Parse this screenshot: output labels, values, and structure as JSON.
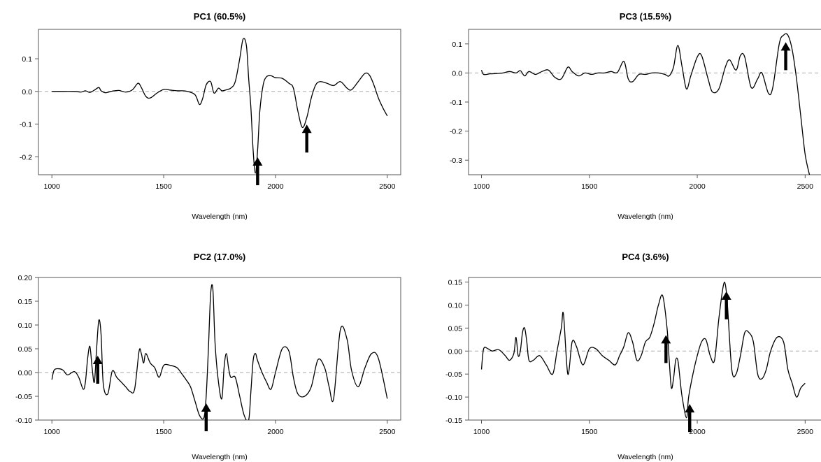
{
  "chart_data": [
    {
      "type": "line",
      "title": "PC1 (60.5%)",
      "xlabel": "Wavelength (nm)",
      "ylabel": "",
      "xlim": [
        940,
        2560
      ],
      "ylim": [
        -0.255,
        0.19
      ],
      "xticks": [
        1000,
        1500,
        2000,
        2500
      ],
      "yticks": [
        -0.2,
        -0.1,
        0.0,
        0.1
      ],
      "ytick_labels": [
        "-0.2",
        "-0.1",
        "0.0",
        "0.1"
      ],
      "zero_line": true,
      "series": [
        {
          "x": [
            1000,
            1050,
            1100,
            1130,
            1150,
            1170,
            1190,
            1210,
            1220,
            1240,
            1270,
            1300,
            1330,
            1360,
            1385,
            1400,
            1420,
            1440,
            1470,
            1500,
            1530,
            1560,
            1600,
            1640,
            1660,
            1675,
            1690,
            1710,
            1725,
            1745,
            1760,
            1780,
            1800,
            1820,
            1840,
            1855,
            1870,
            1880,
            1890,
            1900,
            1910,
            1920,
            1930,
            1945,
            1960,
            1980,
            2000,
            2030,
            2060,
            2080,
            2100,
            2120,
            2140,
            2160,
            2180,
            2200,
            2230,
            2260,
            2290,
            2320,
            2340,
            2370,
            2400,
            2420,
            2440,
            2460,
            2480,
            2500
          ],
          "y": [
            0,
            0,
            0,
            -0.002,
            0.002,
            -0.003,
            0.004,
            0.012,
            0.002,
            -0.004,
            0.001,
            0.003,
            -0.002,
            0.005,
            0.025,
            0.012,
            -0.015,
            -0.02,
            -0.005,
            0.006,
            0.004,
            0.002,
            0.001,
            -0.01,
            -0.04,
            -0.02,
            0.02,
            0.03,
            -0.005,
            0.01,
            0.002,
            0.005,
            0.01,
            0.03,
            0.1,
            0.16,
            0.14,
            0.04,
            -0.05,
            -0.18,
            -0.25,
            -0.18,
            -0.06,
            0.02,
            0.045,
            0.048,
            0.042,
            0.04,
            0.025,
            0.01,
            -0.06,
            -0.11,
            -0.08,
            -0.02,
            0.02,
            0.03,
            0.025,
            0.018,
            0.03,
            0.01,
            0.005,
            0.03,
            0.055,
            0.05,
            0.02,
            -0.02,
            -0.05,
            -0.075
          ]
        }
      ],
      "arrows": [
        1920,
        2140
      ]
    },
    {
      "type": "line",
      "title": "PC2 (17.0%)",
      "xlabel": "Wavelength (nm)",
      "ylabel": "",
      "xlim": [
        940,
        2560
      ],
      "ylim": [
        -0.1,
        0.2
      ],
      "xticks": [
        1000,
        1500,
        2000,
        2500
      ],
      "yticks": [
        -0.1,
        -0.05,
        0.0,
        0.05,
        0.1,
        0.15,
        0.2
      ],
      "ytick_labels": [
        "-0.10",
        "-0.05",
        "0.00",
        "0.05",
        "0.10",
        "0.15",
        "0.20"
      ],
      "zero_line": true,
      "series": [
        {
          "x": [
            1000,
            1010,
            1030,
            1050,
            1070,
            1100,
            1120,
            1140,
            1150,
            1160,
            1170,
            1180,
            1190,
            1200,
            1210,
            1220,
            1230,
            1250,
            1270,
            1290,
            1310,
            1330,
            1350,
            1370,
            1390,
            1400,
            1410,
            1420,
            1440,
            1460,
            1480,
            1500,
            1530,
            1560,
            1580,
            1600,
            1620,
            1640,
            1660,
            1680,
            1690,
            1700,
            1710,
            1720,
            1730,
            1745,
            1760,
            1770,
            1780,
            1790,
            1800,
            1820,
            1840,
            1860,
            1880,
            1890,
            1900,
            1910,
            1920,
            1940,
            1960,
            1980,
            2000,
            2030,
            2060,
            2080,
            2100,
            2130,
            2160,
            2190,
            2220,
            2240,
            2260,
            2290,
            2320,
            2340,
            2370,
            2400,
            2430,
            2460,
            2500
          ],
          "y": [
            -0.015,
            0.005,
            0.008,
            0.005,
            -0.005,
            0.002,
            -0.01,
            -0.035,
            -0.02,
            0.03,
            0.055,
            0.01,
            -0.02,
            0.05,
            0.11,
            0.08,
            -0.025,
            -0.045,
            0.003,
            -0.01,
            -0.02,
            -0.03,
            -0.04,
            -0.035,
            0.045,
            0.04,
            0.02,
            0.04,
            0.02,
            0.01,
            -0.01,
            0.015,
            0.015,
            0.01,
            -0.002,
            -0.015,
            -0.03,
            -0.06,
            -0.09,
            -0.095,
            -0.05,
            0.05,
            0.165,
            0.175,
            0.06,
            -0.02,
            -0.055,
            0.01,
            0.04,
            0.01,
            -0.01,
            -0.01,
            -0.05,
            -0.09,
            -0.1,
            -0.04,
            0.025,
            0.04,
            0.025,
            0.0,
            -0.02,
            -0.035,
            0.0,
            0.05,
            0.045,
            -0.01,
            -0.045,
            -0.05,
            -0.03,
            0.027,
            0.01,
            -0.03,
            -0.055,
            0.09,
            0.07,
            0.005,
            -0.03,
            0.01,
            0.04,
            0.03,
            -0.055
          ]
        }
      ],
      "arrows": [
        1205,
        1690
      ]
    },
    {
      "type": "line",
      "title": "PC3 (15.5%)",
      "xlabel": "Wavelength (nm)",
      "ylabel": "",
      "xlim": [
        940,
        2580
      ],
      "ylim": [
        -0.35,
        0.15
      ],
      "xticks": [
        1000,
        1500,
        2000,
        2500
      ],
      "yticks": [
        -0.3,
        -0.2,
        -0.1,
        0.0,
        0.1
      ],
      "ytick_labels": [
        "-0.3",
        "-0.2",
        "-0.1",
        "0.0",
        "0.1"
      ],
      "zero_line": true,
      "series": [
        {
          "x": [
            1000,
            1010,
            1040,
            1070,
            1100,
            1130,
            1160,
            1180,
            1200,
            1220,
            1250,
            1280,
            1310,
            1340,
            1370,
            1400,
            1420,
            1450,
            1480,
            1510,
            1540,
            1570,
            1600,
            1630,
            1660,
            1680,
            1700,
            1730,
            1760,
            1790,
            1820,
            1850,
            1870,
            1890,
            1910,
            1930,
            1950,
            1970,
            2000,
            2020,
            2050,
            2070,
            2100,
            2130,
            2150,
            2180,
            2200,
            2220,
            2250,
            2280,
            2300,
            2330,
            2350,
            2380,
            2400,
            2420,
            2440,
            2460,
            2480,
            2500,
            2520
          ],
          "y": [
            0.01,
            -0.005,
            -0.003,
            -0.002,
            0.0,
            0.005,
            0.0,
            0.008,
            -0.01,
            0.005,
            -0.005,
            0.005,
            0.01,
            -0.015,
            -0.02,
            0.02,
            0.005,
            -0.01,
            0.0,
            -0.005,
            0.0,
            0.0,
            0.005,
            0.002,
            0.04,
            -0.02,
            -0.03,
            -0.005,
            -0.005,
            0.0,
            0.0,
            -0.005,
            -0.01,
            0.02,
            0.095,
            0.02,
            -0.055,
            -0.01,
            0.055,
            0.06,
            -0.02,
            -0.065,
            -0.055,
            0.02,
            0.045,
            0.01,
            0.06,
            0.055,
            -0.05,
            -0.02,
            0.0,
            -0.07,
            -0.05,
            0.1,
            0.13,
            0.13,
            0.08,
            -0.02,
            -0.15,
            -0.28,
            -0.35
          ]
        }
      ],
      "arrows": [
        2410
      ]
    },
    {
      "type": "line",
      "title": "PC4 (3.6%)",
      "xlabel": "Wavelength (nm)",
      "ylabel": "",
      "xlim": [
        940,
        2580
      ],
      "ylim": [
        -0.15,
        0.16
      ],
      "xticks": [
        1000,
        1500,
        2000,
        2500
      ],
      "yticks": [
        -0.15,
        -0.1,
        -0.05,
        0.0,
        0.05,
        0.1,
        0.15
      ],
      "ytick_labels": [
        "-0.15",
        "-0.10",
        "-0.05",
        "0.00",
        "0.05",
        "0.10",
        "0.15"
      ],
      "zero_line": true,
      "series": [
        {
          "x": [
            1000,
            1010,
            1030,
            1050,
            1080,
            1110,
            1130,
            1150,
            1160,
            1170,
            1180,
            1190,
            1200,
            1210,
            1220,
            1240,
            1270,
            1300,
            1330,
            1350,
            1370,
            1380,
            1400,
            1420,
            1440,
            1470,
            1500,
            1530,
            1560,
            1590,
            1620,
            1640,
            1660,
            1680,
            1700,
            1720,
            1740,
            1760,
            1780,
            1800,
            1820,
            1840,
            1860,
            1870,
            1880,
            1890,
            1900,
            1910,
            1920,
            1930,
            1950,
            1960,
            1980,
            2000,
            2020,
            2040,
            2060,
            2080,
            2100,
            2120,
            2130,
            2140,
            2160,
            2180,
            2200,
            2220,
            2240,
            2260,
            2280,
            2300,
            2320,
            2340,
            2370,
            2400,
            2420,
            2440,
            2460,
            2480,
            2500
          ],
          "y": [
            -0.04,
            0.005,
            0.005,
            0.0,
            0.003,
            -0.01,
            -0.02,
            -0.005,
            0.03,
            -0.01,
            0.0,
            0.04,
            0.05,
            0.02,
            -0.02,
            -0.02,
            -0.01,
            -0.03,
            -0.05,
            0.0,
            0.05,
            0.08,
            -0.05,
            0.02,
            0.01,
            -0.03,
            0.005,
            0.005,
            -0.01,
            -0.02,
            -0.03,
            -0.01,
            0.01,
            0.04,
            0.02,
            -0.02,
            -0.01,
            0.02,
            0.03,
            0.06,
            0.1,
            0.12,
            0.05,
            -0.02,
            -0.08,
            -0.06,
            -0.02,
            -0.02,
            -0.06,
            -0.1,
            -0.145,
            -0.1,
            -0.05,
            -0.01,
            0.02,
            0.025,
            -0.01,
            -0.02,
            0.07,
            0.14,
            0.145,
            0.1,
            -0.04,
            -0.05,
            -0.01,
            0.04,
            0.04,
            0.02,
            -0.05,
            -0.06,
            -0.04,
            0.0,
            0.03,
            0.02,
            -0.04,
            -0.07,
            -0.1,
            -0.08,
            -0.07
          ]
        }
      ],
      "arrows": [
        1855,
        1965,
        2135
      ]
    }
  ]
}
